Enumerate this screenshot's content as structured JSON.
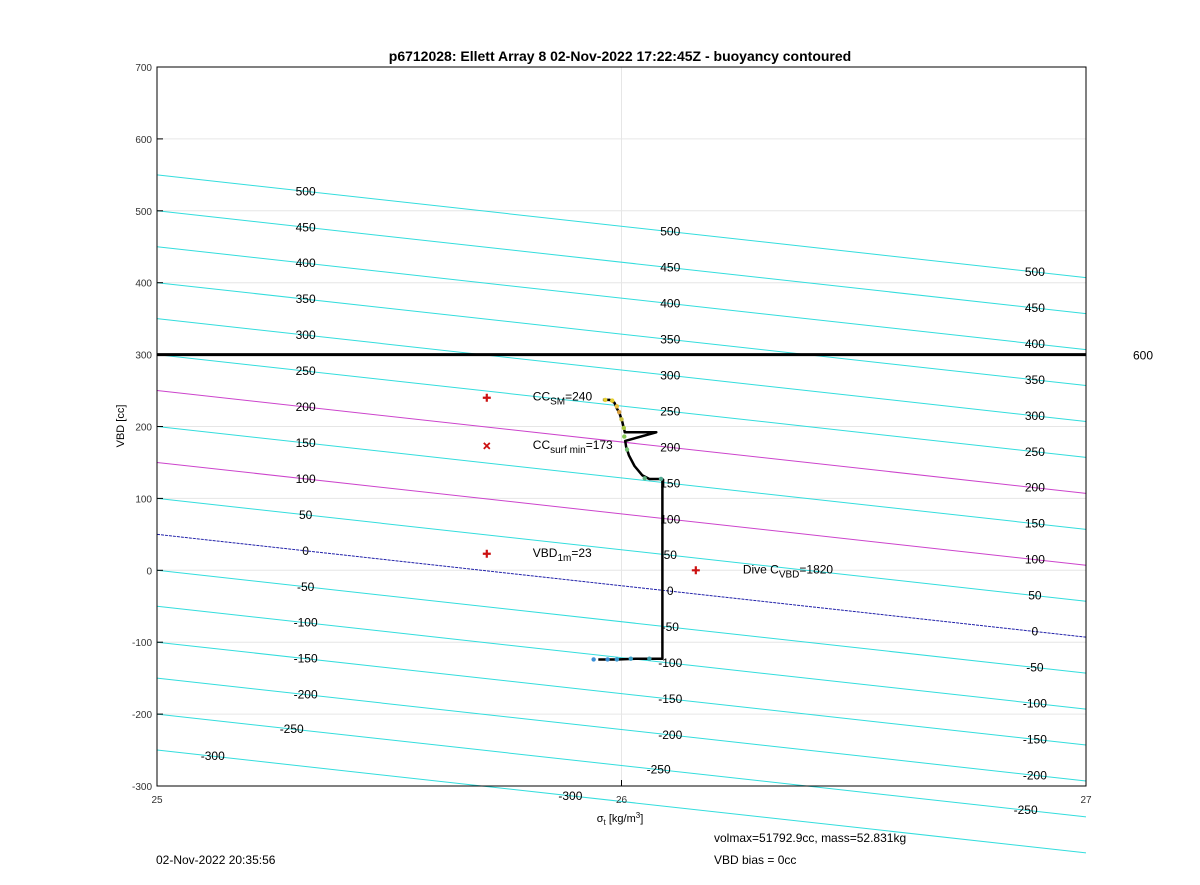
{
  "title": "p6712028: Ellett Array 8 02-Nov-2022 17:22:45Z - buoyancy contoured",
  "xlabel_sym": "σ",
  "xlabel_sub": "t",
  "xlabel_unit": " [kg/m",
  "xlabel_sup": "3",
  "xlabel_end": "]",
  "ylabel": "VBD [cc]",
  "footer": {
    "timestamp": "02-Nov-2022 20:35:56",
    "volmax": "volmax=51792.9cc, mass=52.831kg",
    "vbd_bias": "VBD bias = 0cc"
  },
  "colors": {
    "contour": "#33dddd",
    "magenta": "#cc44cc",
    "zero_line": "#2222aa",
    "marker": "#cc1111",
    "profile": "#000000",
    "grid": "#e6e6e6"
  },
  "chart_data": {
    "type": "line",
    "xlim": [
      25,
      27
    ],
    "ylim": [
      -300,
      700
    ],
    "xticks": [
      25,
      26,
      27
    ],
    "yticks": [
      -300,
      -200,
      -100,
      0,
      100,
      200,
      300,
      400,
      500,
      600,
      700
    ],
    "grid": true,
    "contours": {
      "levels": [
        -300,
        -250,
        -200,
        -150,
        -100,
        -50,
        0,
        50,
        100,
        150,
        200,
        250,
        300,
        350,
        400,
        450,
        500
      ],
      "slope_cc_per_kgm3": -71.5,
      "intercepts_at_x25": [
        -250,
        -200,
        -150,
        -100,
        -50,
        0,
        50,
        100,
        150,
        200,
        250,
        300,
        350,
        400,
        450,
        500,
        550
      ],
      "highlight_magenta": [
        100,
        200
      ],
      "zero_level": 0,
      "labels": [
        {
          "x": 25.32,
          "v": 500
        },
        {
          "x": 25.32,
          "v": 450
        },
        {
          "x": 25.32,
          "v": 400
        },
        {
          "x": 25.32,
          "v": 350
        },
        {
          "x": 25.32,
          "v": 300
        },
        {
          "x": 25.32,
          "v": 250
        },
        {
          "x": 25.32,
          "v": 200
        },
        {
          "x": 25.32,
          "v": 150
        },
        {
          "x": 25.32,
          "v": 100
        },
        {
          "x": 25.32,
          "v": 50
        },
        {
          "x": 25.32,
          "v": 0
        },
        {
          "x": 25.32,
          "v": -50
        },
        {
          "x": 25.32,
          "v": -100
        },
        {
          "x": 25.32,
          "v": -150
        },
        {
          "x": 25.32,
          "v": -200
        },
        {
          "x": 25.29,
          "v": -250
        },
        {
          "x": 25.12,
          "v": -300
        },
        {
          "x": 26.105,
          "v": 500
        },
        {
          "x": 26.105,
          "v": 450
        },
        {
          "x": 26.105,
          "v": 400
        },
        {
          "x": 26.105,
          "v": 350
        },
        {
          "x": 26.105,
          "v": 300
        },
        {
          "x": 26.105,
          "v": 250
        },
        {
          "x": 26.105,
          "v": 200
        },
        {
          "x": 26.105,
          "v": 150
        },
        {
          "x": 26.105,
          "v": 100
        },
        {
          "x": 26.105,
          "v": 50
        },
        {
          "x": 26.105,
          "v": 0
        },
        {
          "x": 26.105,
          "v": -50
        },
        {
          "x": 26.105,
          "v": -100
        },
        {
          "x": 26.105,
          "v": -150
        },
        {
          "x": 26.105,
          "v": -200
        },
        {
          "x": 26.08,
          "v": -250
        },
        {
          "x": 25.89,
          "v": -300
        },
        {
          "x": 26.89,
          "v": 500
        },
        {
          "x": 26.89,
          "v": 450
        },
        {
          "x": 26.89,
          "v": 400
        },
        {
          "x": 26.89,
          "v": 350
        },
        {
          "x": 26.89,
          "v": 300
        },
        {
          "x": 26.89,
          "v": 250
        },
        {
          "x": 26.89,
          "v": 200
        },
        {
          "x": 26.89,
          "v": 150
        },
        {
          "x": 26.89,
          "v": 100
        },
        {
          "x": 26.89,
          "v": 50
        },
        {
          "x": 26.89,
          "v": 0
        },
        {
          "x": 26.89,
          "v": -50
        },
        {
          "x": 26.89,
          "v": -100
        },
        {
          "x": 26.89,
          "v": -150
        },
        {
          "x": 26.89,
          "v": -200
        },
        {
          "x": 26.87,
          "v": -250
        }
      ]
    },
    "reference_line": {
      "y": 300,
      "label": "600"
    },
    "profile": {
      "x": [
        25.96,
        25.975,
        25.985,
        25.99,
        25.993,
        25.996,
        25.999,
        26.002,
        26.004,
        26.006,
        26.007,
        26.075,
        26.008,
        26.01,
        26.016,
        26.028,
        26.045,
        26.06,
        26.088,
        26.088,
        26.088,
        26.03,
        25.99,
        25.95
      ],
      "y": [
        237,
        237,
        233,
        225,
        222,
        218,
        212,
        206,
        200,
        195,
        192,
        192,
        180,
        172,
        160,
        145,
        132,
        127,
        127,
        60,
        -123,
        -123,
        -124,
        -124
      ]
    },
    "markers": [
      {
        "type": "plus",
        "x": 25.71,
        "y": 240,
        "label_main": "CC",
        "label_sub": "SM",
        "label_rest": "=240"
      },
      {
        "type": "cross",
        "x": 25.71,
        "y": 173,
        "label_main": "CC",
        "label_sub": "surf min",
        "label_rest": "=173"
      },
      {
        "type": "plus",
        "x": 25.71,
        "y": 23,
        "label_main": "VBD",
        "label_sub": "1m",
        "label_rest": "=23"
      },
      {
        "type": "plus",
        "x": 26.16,
        "y": 0,
        "label_main": "Dive C",
        "label_sub": "VBD",
        "label_rest": "=1820"
      }
    ]
  }
}
